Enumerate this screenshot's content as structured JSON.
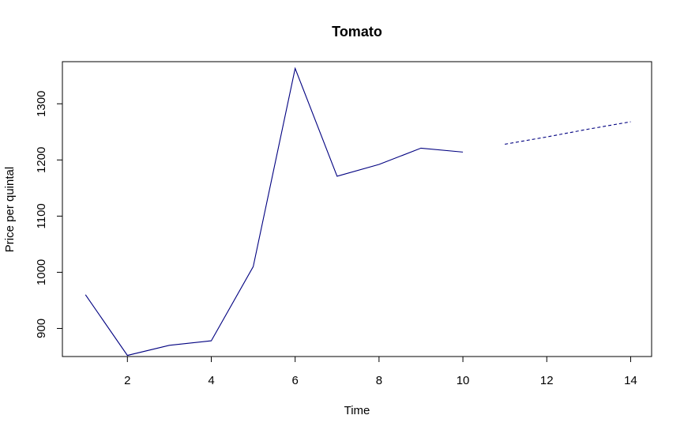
{
  "chart_data": {
    "type": "line",
    "title": "Tomato",
    "xlabel": "Time",
    "ylabel": "Price per quintal",
    "xlim": [
      0.45,
      14.5
    ],
    "ylim": [
      850,
      1375
    ],
    "x_ticks": [
      2,
      4,
      6,
      8,
      10,
      12,
      14
    ],
    "y_ticks": [
      900,
      1000,
      1100,
      1200,
      1300
    ],
    "grid": false,
    "line_color": "#000080",
    "series": [
      {
        "style": "solid",
        "x": [
          1,
          2,
          3,
          4,
          5,
          6,
          7,
          8,
          9,
          10
        ],
        "y": [
          960,
          852,
          870,
          878,
          1010,
          1363,
          1171,
          1192,
          1221,
          1214
        ]
      },
      {
        "style": "dashed",
        "x": [
          11,
          12,
          13,
          14
        ],
        "y": [
          1228,
          1241,
          1255,
          1268
        ]
      }
    ]
  }
}
